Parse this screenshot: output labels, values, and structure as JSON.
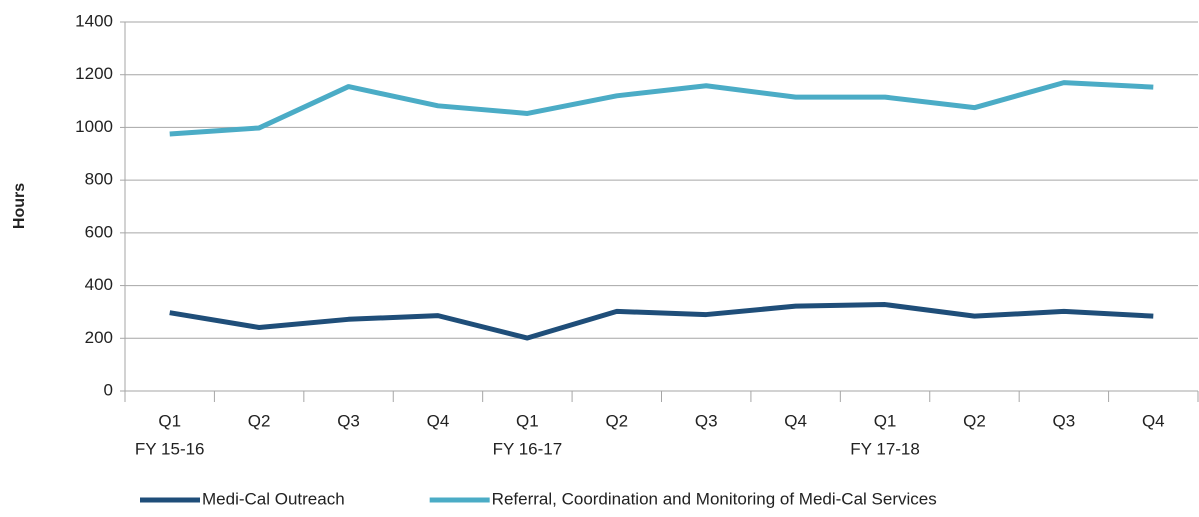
{
  "chart_data": {
    "type": "line",
    "y_label": "Hours",
    "categories": [
      "Q1",
      "Q2",
      "Q3",
      "Q4",
      "Q1",
      "Q2",
      "Q3",
      "Q4",
      "Q1",
      "Q2",
      "Q3",
      "Q4"
    ],
    "category_groups": [
      "FY 15-16",
      null,
      null,
      null,
      "FY 16-17",
      null,
      null,
      null,
      "FY 17-18",
      null,
      null,
      null
    ],
    "series": [
      {
        "name": "Medi-Cal Outreach",
        "color": "#1f4e79",
        "values": [
          297,
          241,
          272,
          286,
          201,
          302,
          290,
          322,
          328,
          284,
          302,
          284
        ]
      },
      {
        "name": "Referral, Coordination and Monitoring of Medi-Cal Services",
        "color": "#4bacc6",
        "values": [
          975,
          998,
          1155,
          1082,
          1053,
          1120,
          1158,
          1115,
          1115,
          1075,
          1170,
          1153
        ]
      }
    ],
    "ylim": [
      0,
      1400
    ],
    "yticks": [
      0,
      200,
      400,
      600,
      800,
      1000,
      1200,
      1400
    ],
    "grid": true,
    "legend": "bottom"
  }
}
